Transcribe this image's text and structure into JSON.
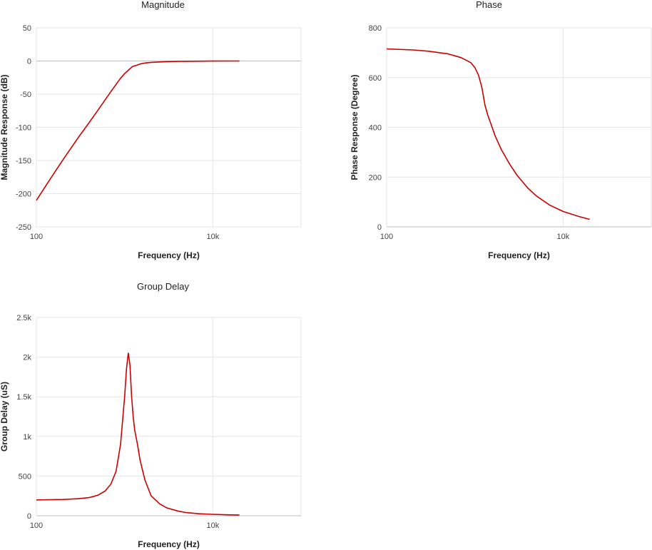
{
  "chart_data": [
    {
      "id": "magnitude",
      "type": "line",
      "title": "Magnitude",
      "xlabel": "Frequency (Hz)",
      "ylabel": "Magnitude Response (dB)",
      "xscale": "log",
      "xlim": [
        100,
        100000
      ],
      "ylim": [
        -250,
        50
      ],
      "x_ticks": [
        {
          "value": 100,
          "label": "100"
        },
        {
          "value": 10000,
          "label": "10k"
        }
      ],
      "y_ticks": [
        {
          "value": 50,
          "label": "50"
        },
        {
          "value": 0,
          "label": "0"
        },
        {
          "value": -50,
          "label": "-50"
        },
        {
          "value": -100,
          "label": "-100"
        },
        {
          "value": -150,
          "label": "-150"
        },
        {
          "value": -200,
          "label": "-200"
        },
        {
          "value": -250,
          "label": "-250"
        }
      ],
      "grid": true,
      "color": "#cc0000",
      "series": [
        {
          "x": [
            100,
            150,
            200,
            300,
            400,
            500,
            700,
            900,
            1000,
            1100,
            1200,
            1250,
            1300,
            1350,
            1400,
            1500,
            1700,
            2000,
            3000,
            5000,
            10000,
            20000
          ],
          "y": [
            -210,
            -174,
            -149,
            -115,
            -92,
            -74,
            -46,
            -26,
            -19,
            -14,
            -9.5,
            -8,
            -7.2,
            -6.8,
            -6,
            -4.5,
            -3,
            -2,
            -1,
            -0.4,
            -0.1,
            0
          ]
        }
      ]
    },
    {
      "id": "phase",
      "type": "line",
      "title": "Phase",
      "xlabel": "Frequency (Hz)",
      "ylabel": "Phase Response (Degree)",
      "xscale": "log",
      "xlim": [
        100,
        100000
      ],
      "ylim": [
        0,
        800
      ],
      "x_ticks": [
        {
          "value": 100,
          "label": "100"
        },
        {
          "value": 10000,
          "label": "10k"
        }
      ],
      "y_ticks": [
        {
          "value": 800,
          "label": "800"
        },
        {
          "value": 600,
          "label": "600"
        },
        {
          "value": 400,
          "label": "400"
        },
        {
          "value": 200,
          "label": "200"
        },
        {
          "value": 0,
          "label": "0"
        }
      ],
      "grid": true,
      "color": "#cc0000",
      "series": [
        {
          "x": [
            100,
            200,
            300,
            500,
            700,
            900,
            1000,
            1100,
            1200,
            1300,
            1400,
            1500,
            1700,
            2000,
            2500,
            3000,
            4000,
            5000,
            7000,
            10000,
            15000,
            20000
          ],
          "y": [
            715,
            711,
            706,
            695,
            680,
            660,
            640,
            610,
            560,
            490,
            450,
            420,
            365,
            310,
            250,
            208,
            155,
            124,
            88,
            62,
            42,
            30
          ]
        }
      ]
    },
    {
      "id": "group-delay",
      "type": "line",
      "title": "Group Delay",
      "xlabel": "Frequency (Hz)",
      "ylabel": "Group Delay (uS)",
      "xscale": "log",
      "xlim": [
        100,
        100000
      ],
      "ylim": [
        0,
        2500
      ],
      "x_ticks": [
        {
          "value": 100,
          "label": "100"
        },
        {
          "value": 10000,
          "label": "10k"
        }
      ],
      "y_ticks": [
        {
          "value": 2500,
          "label": "2.5k"
        },
        {
          "value": 2000,
          "label": "2k"
        },
        {
          "value": 1500,
          "label": "1.5k"
        },
        {
          "value": 1000,
          "label": "1k"
        },
        {
          "value": 500,
          "label": "500"
        },
        {
          "value": 0,
          "label": "0"
        }
      ],
      "grid": true,
      "color": "#cc0000",
      "series": [
        {
          "x": [
            100,
            200,
            300,
            400,
            500,
            600,
            700,
            800,
            900,
            1000,
            1050,
            1100,
            1150,
            1200,
            1250,
            1300,
            1400,
            1500,
            1700,
            2000,
            2500,
            3000,
            4000,
            5000,
            7000,
            10000,
            15000,
            20000
          ],
          "y": [
            200,
            205,
            215,
            230,
            260,
            310,
            400,
            560,
            900,
            1500,
            1850,
            2050,
            1900,
            1500,
            1250,
            1080,
            900,
            700,
            450,
            250,
            150,
            100,
            60,
            40,
            25,
            18,
            12,
            10
          ]
        }
      ]
    }
  ]
}
